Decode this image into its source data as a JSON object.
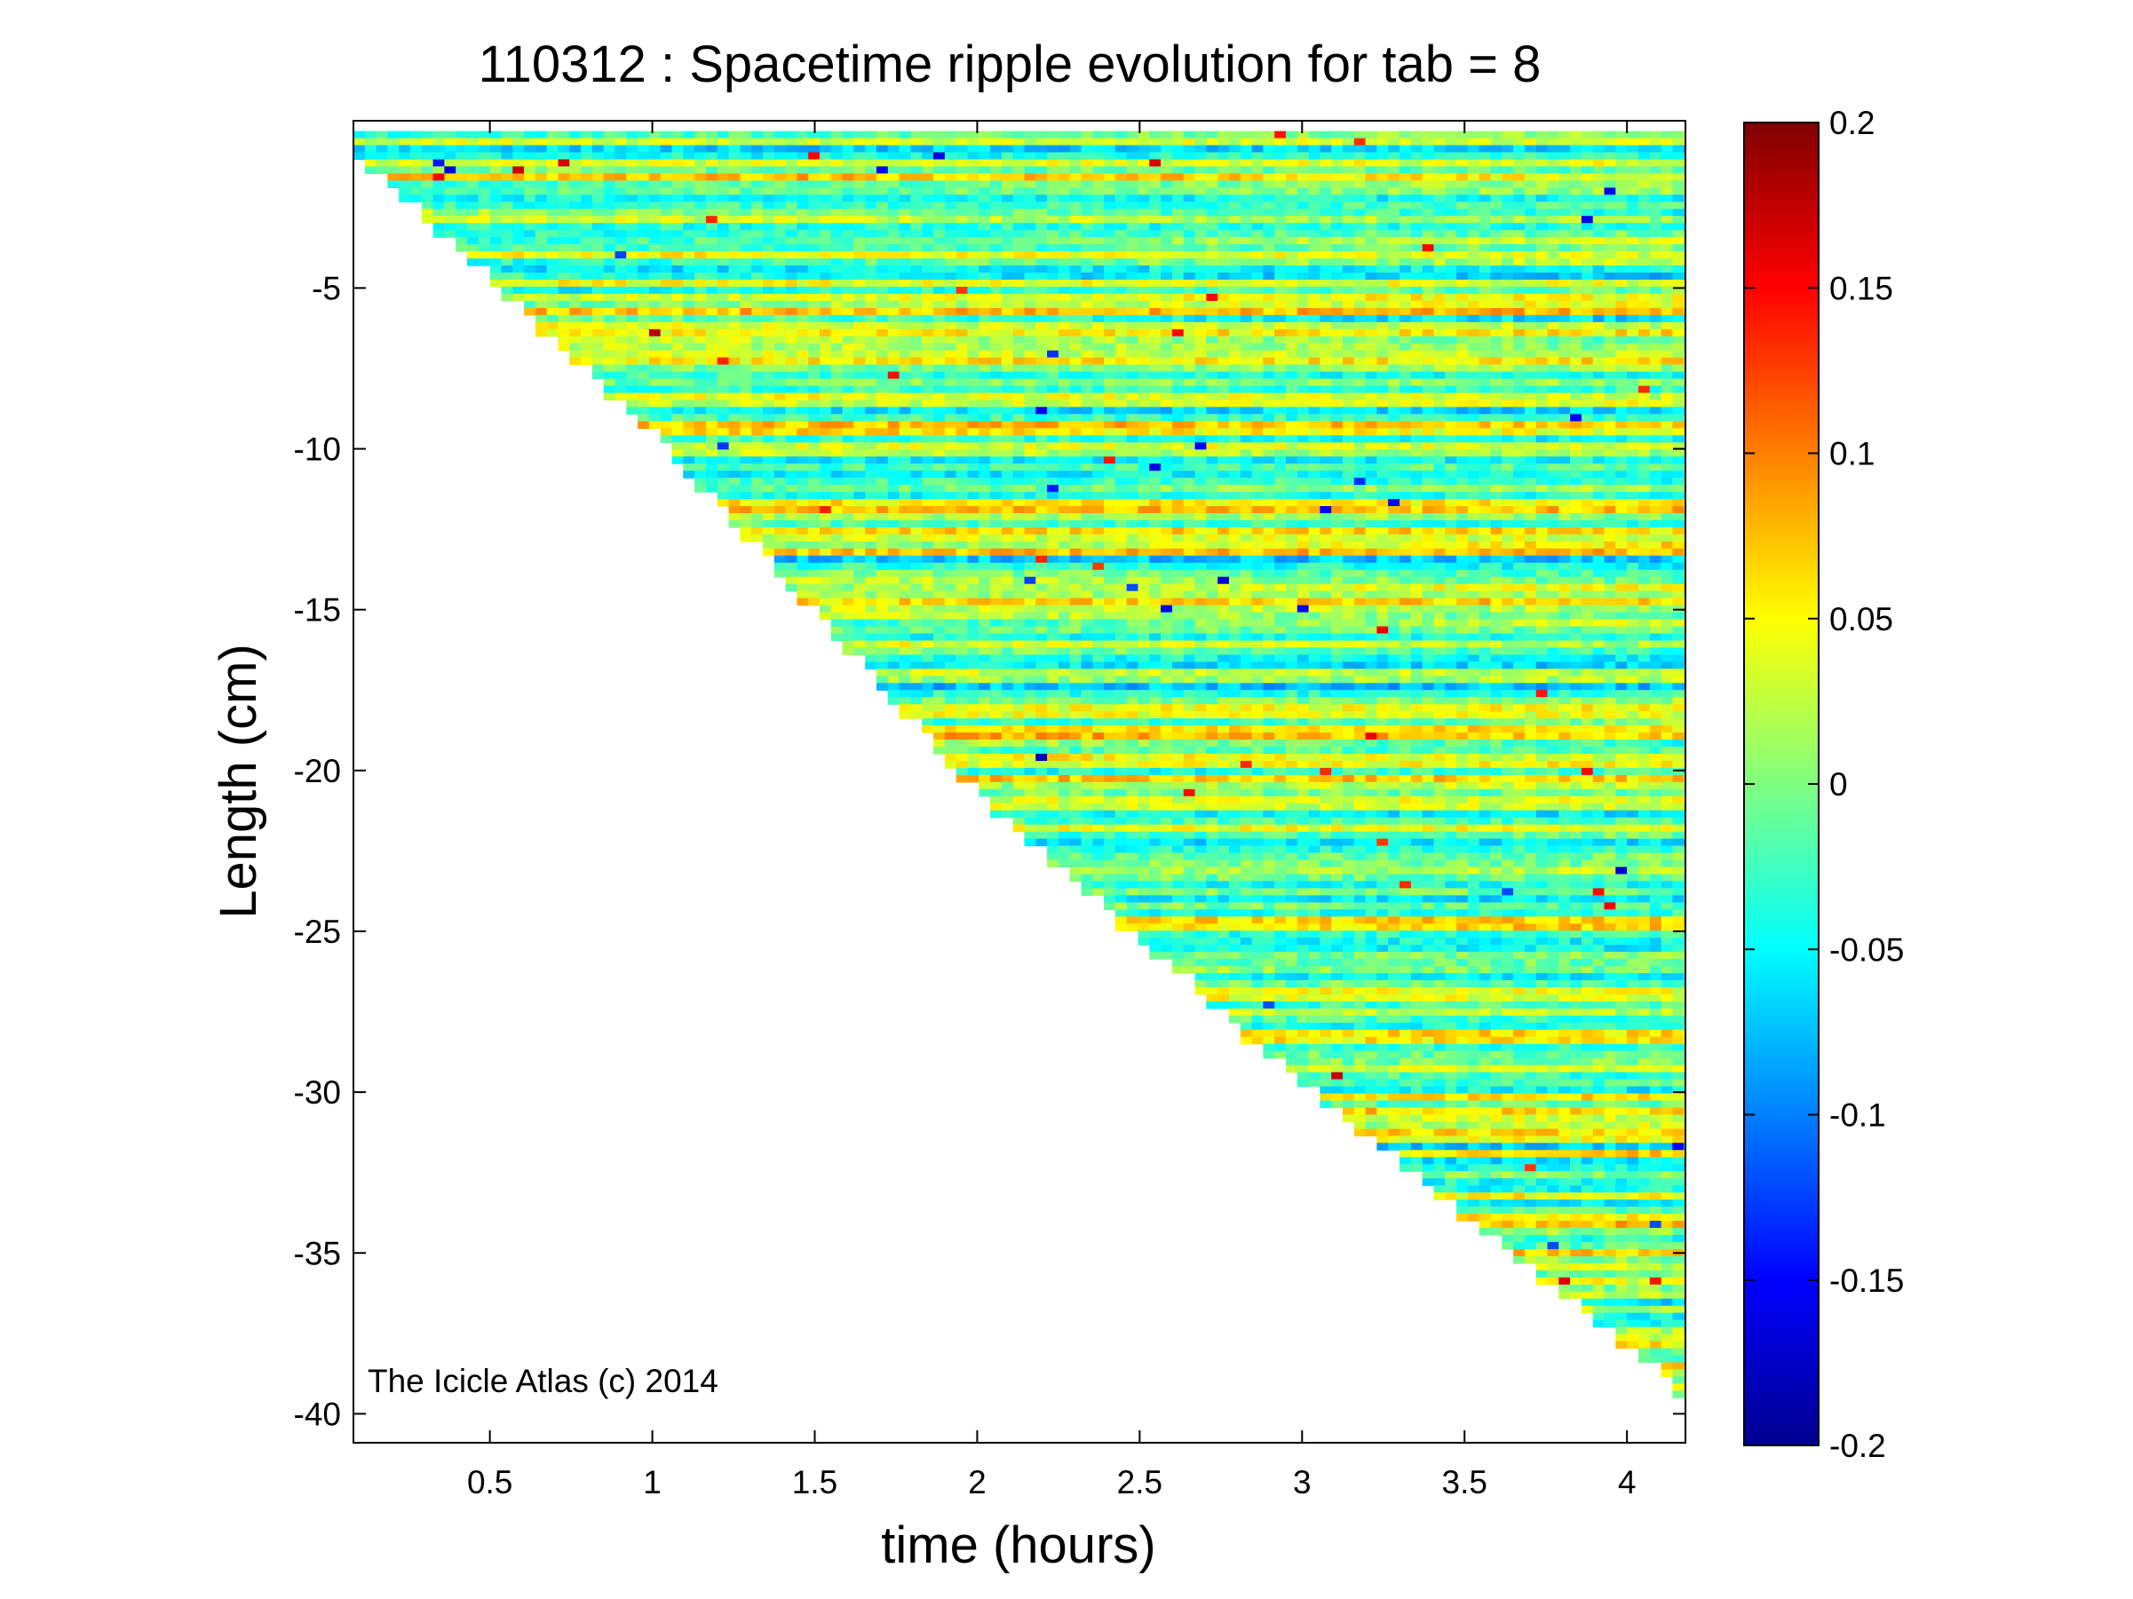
{
  "chart_data": {
    "type": "heatmap",
    "title": "110312 : Spacetime ripple evolution for tab = 8",
    "xlabel": "time (hours)",
    "ylabel": "Length (cm)",
    "xlim": [
      0.08,
      4.18
    ],
    "ylim": [
      -40.9,
      0.2
    ],
    "xticks": [
      0.5,
      1,
      1.5,
      2,
      2.5,
      3,
      3.5,
      4
    ],
    "xtick_labels": [
      "0.5",
      "1",
      "1.5",
      "2",
      "2.5",
      "3",
      "3.5",
      "4"
    ],
    "yticks": [
      -5,
      -10,
      -15,
      -20,
      -25,
      -30,
      -35,
      -40
    ],
    "ytick_labels": [
      "-5",
      "-10",
      "-15",
      "-20",
      "-25",
      "-30",
      "-35",
      "-40"
    ],
    "colorbar": {
      "range": [
        -0.2,
        0.2
      ],
      "colormap": "jet",
      "ticks": [
        0.2,
        0.15,
        0.1,
        0.05,
        0,
        -0.05,
        -0.1,
        -0.15,
        -0.2
      ],
      "tick_labels": [
        "0.2",
        "0.15",
        "0.1",
        "0.05",
        "0",
        "-0.05",
        "-0.1",
        "-0.15",
        "-0.2"
      ]
    },
    "growth_front": {
      "description_points": [
        [
          0.08,
          -1.0
        ],
        [
          1.0,
          -9.8
        ],
        [
          2.0,
          -21.0
        ],
        [
          3.0,
          -30.0
        ],
        [
          4.17,
          -39.5
        ]
      ]
    },
    "grid": false,
    "legend": "none"
  },
  "annotation": "The Icicle Atlas (c) 2014"
}
